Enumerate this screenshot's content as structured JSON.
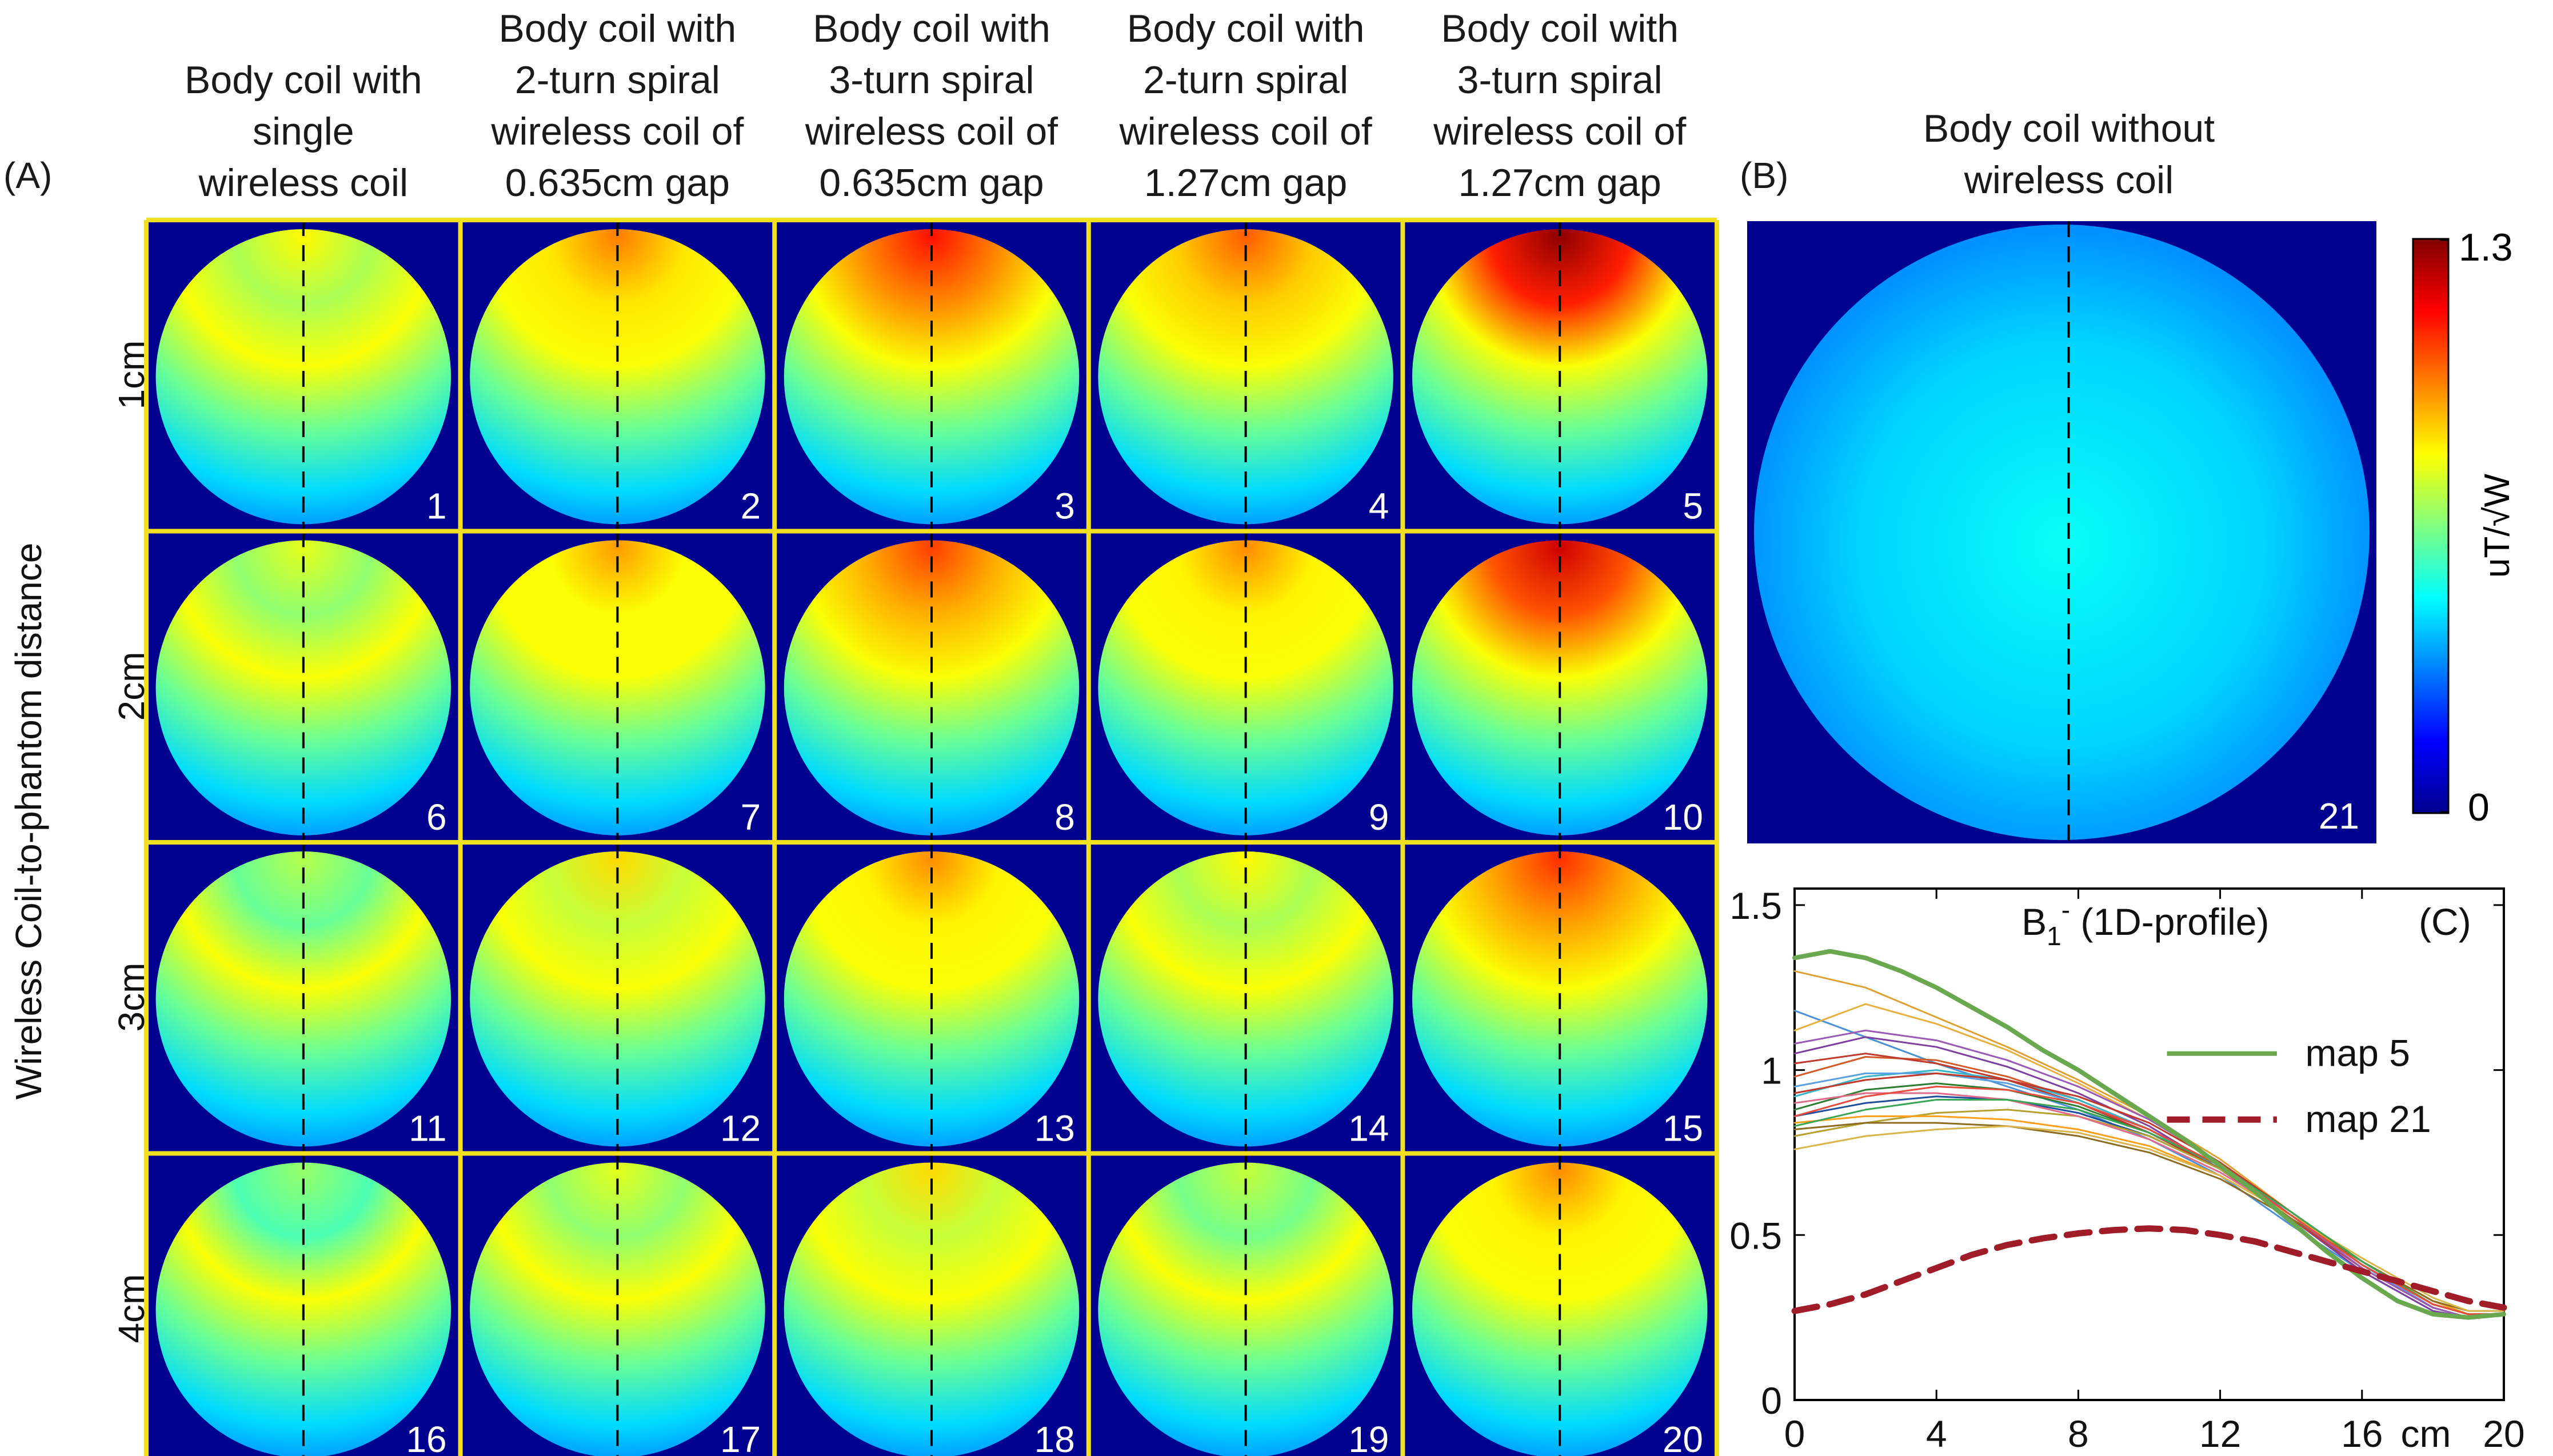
{
  "panel_labels": {
    "a": "(A)",
    "b": "(B)",
    "c": "(C)"
  },
  "panel_a": {
    "column_headers": [
      [
        "Body coil with",
        "single",
        "wireless coil"
      ],
      [
        "Body coil with",
        "2-turn spiral",
        "wireless coil of",
        "0.635cm gap"
      ],
      [
        "Body coil with",
        "3-turn spiral",
        "wireless coil of",
        "0.635cm gap"
      ],
      [
        "Body coil with",
        "2-turn spiral",
        "wireless coil of",
        "1.27cm gap"
      ],
      [
        "Body coil with",
        "3-turn spiral",
        "wireless coil of",
        "1.27cm gap"
      ]
    ],
    "row_labels": [
      "1cm",
      "2cm",
      "3cm",
      "4cm"
    ],
    "y_axis_label": "Wireless Coil-to-phantom distance",
    "map_numbers": [
      "1",
      "2",
      "3",
      "4",
      "5",
      "6",
      "7",
      "8",
      "9",
      "10",
      "11",
      "12",
      "13",
      "14",
      "15",
      "16",
      "17",
      "18",
      "19",
      "20"
    ],
    "peak_intensity": [
      [
        0.82,
        0.98,
        1.12,
        1.02,
        1.28
      ],
      [
        0.78,
        0.94,
        1.06,
        0.96,
        1.2
      ],
      [
        0.72,
        0.86,
        0.96,
        0.82,
        1.08
      ],
      [
        0.68,
        0.78,
        0.86,
        0.74,
        0.96
      ]
    ]
  },
  "panel_b": {
    "title": [
      "Body coil without",
      "wireless coil"
    ],
    "map_number": "21",
    "intensity": 0.42
  },
  "colorbar": {
    "max_label": "1.3",
    "min_label": "0",
    "unit_label": "uT/√W",
    "range": [
      0,
      1.3
    ]
  },
  "colors": {
    "grid_border": "#f0e020",
    "background": "#00008f",
    "dashed_line": "#000000"
  },
  "chart_data": {
    "type": "line",
    "title": "B1- (1D-profile)",
    "title_main": "B",
    "title_sub": "1",
    "title_sup": "-",
    "title_rest": " (1D-profile)",
    "panel_label": "(C)",
    "x_unit": "cm",
    "xlim": [
      0,
      20
    ],
    "ylim": [
      0,
      1.55
    ],
    "x_ticks": [
      0,
      4,
      8,
      12,
      16,
      20
    ],
    "x_tick_labels": [
      "0",
      "4",
      "8",
      "12",
      "16",
      "20"
    ],
    "y_ticks": [
      0,
      0.5,
      1,
      1.5
    ],
    "y_tick_labels": [
      "0",
      "0.5",
      "1",
      "1.5"
    ],
    "legend_position": "top-right",
    "series": [
      {
        "name": "map 5",
        "color": "#6aa84f",
        "width": 8,
        "dash": "",
        "x": [
          0,
          1,
          2,
          3,
          4,
          5,
          6,
          7,
          8,
          9,
          10,
          11,
          12,
          13,
          14,
          15,
          16,
          17,
          18,
          19,
          20
        ],
        "y": [
          1.34,
          1.36,
          1.34,
          1.3,
          1.25,
          1.19,
          1.13,
          1.06,
          1.0,
          0.93,
          0.86,
          0.79,
          0.71,
          0.63,
          0.54,
          0.45,
          0.37,
          0.3,
          0.26,
          0.25,
          0.26
        ]
      },
      {
        "name": "map 21",
        "color": "#a01c28",
        "width": 11,
        "dash": "40 22",
        "x": [
          0,
          1,
          2,
          3,
          4,
          5,
          6,
          7,
          8,
          9,
          10,
          11,
          12,
          13,
          14,
          15,
          16,
          17,
          18,
          19,
          20
        ],
        "y": [
          0.27,
          0.29,
          0.32,
          0.36,
          0.4,
          0.44,
          0.47,
          0.49,
          0.505,
          0.515,
          0.52,
          0.515,
          0.5,
          0.48,
          0.45,
          0.42,
          0.39,
          0.36,
          0.33,
          0.3,
          0.28
        ]
      },
      {
        "color": "#4a90d9",
        "width": 3,
        "x": [
          0,
          2,
          4,
          6,
          8,
          10,
          12,
          14,
          16,
          18,
          19,
          20
        ],
        "y": [
          1.18,
          1.1,
          1.02,
          0.95,
          0.88,
          0.79,
          0.68,
          0.53,
          0.39,
          0.27,
          0.25,
          0.26
        ]
      },
      {
        "color": "#e0a030",
        "width": 3,
        "x": [
          0,
          2,
          4,
          6,
          8,
          10,
          12,
          14,
          16,
          18,
          19,
          20
        ],
        "y": [
          1.3,
          1.25,
          1.16,
          1.07,
          0.97,
          0.86,
          0.73,
          0.57,
          0.41,
          0.28,
          0.25,
          0.26
        ]
      },
      {
        "color": "#e8b040",
        "width": 3,
        "x": [
          0,
          2,
          4,
          6,
          8,
          10,
          12,
          14,
          16,
          18,
          19,
          20
        ],
        "y": [
          1.12,
          1.2,
          1.14,
          1.06,
          0.96,
          0.85,
          0.72,
          0.56,
          0.4,
          0.28,
          0.25,
          0.26
        ]
      },
      {
        "color": "#7e3fa0",
        "width": 3,
        "x": [
          0,
          2,
          4,
          6,
          8,
          10,
          12,
          14,
          16,
          18,
          19,
          20
        ],
        "y": [
          1.05,
          1.1,
          1.07,
          1.01,
          0.93,
          0.83,
          0.7,
          0.55,
          0.39,
          0.27,
          0.25,
          0.26
        ]
      },
      {
        "color": "#d45a2a",
        "width": 3,
        "x": [
          0,
          2,
          4,
          6,
          8,
          10,
          12,
          14,
          16,
          18,
          19,
          20
        ],
        "y": [
          0.98,
          1.04,
          1.03,
          0.98,
          0.91,
          0.82,
          0.7,
          0.55,
          0.4,
          0.28,
          0.25,
          0.26
        ]
      },
      {
        "color": "#38b6c8",
        "width": 3,
        "x": [
          0,
          2,
          4,
          6,
          8,
          10,
          12,
          14,
          16,
          18,
          19,
          20
        ],
        "y": [
          0.92,
          0.98,
          1.0,
          0.97,
          0.91,
          0.82,
          0.7,
          0.55,
          0.4,
          0.28,
          0.25,
          0.26
        ]
      },
      {
        "color": "#2e7d32",
        "width": 3,
        "x": [
          0,
          2,
          4,
          6,
          8,
          10,
          12,
          14,
          16,
          18,
          19,
          20
        ],
        "y": [
          0.88,
          0.94,
          0.96,
          0.94,
          0.89,
          0.81,
          0.7,
          0.56,
          0.41,
          0.28,
          0.25,
          0.26
        ]
      },
      {
        "color": "#c0392b",
        "width": 3,
        "x": [
          0,
          2,
          4,
          6,
          8,
          10,
          12,
          14,
          16,
          18,
          19,
          20
        ],
        "y": [
          1.02,
          1.05,
          1.02,
          0.97,
          0.9,
          0.81,
          0.7,
          0.55,
          0.4,
          0.28,
          0.25,
          0.26
        ]
      },
      {
        "color": "#1f4e9c",
        "width": 3,
        "x": [
          0,
          2,
          4,
          6,
          8,
          10,
          12,
          14,
          16,
          18,
          19,
          20
        ],
        "y": [
          0.86,
          0.9,
          0.92,
          0.91,
          0.87,
          0.8,
          0.7,
          0.56,
          0.41,
          0.29,
          0.26,
          0.26
        ]
      },
      {
        "color": "#b5a030",
        "width": 3,
        "x": [
          0,
          2,
          4,
          6,
          8,
          10,
          12,
          14,
          16,
          18,
          19,
          20
        ],
        "y": [
          0.8,
          0.84,
          0.87,
          0.88,
          0.86,
          0.8,
          0.7,
          0.56,
          0.42,
          0.29,
          0.26,
          0.26
        ]
      },
      {
        "color": "#e06a8a",
        "width": 3,
        "x": [
          0,
          2,
          4,
          6,
          8,
          10,
          12,
          14,
          16,
          18,
          19,
          20
        ],
        "y": [
          0.9,
          0.93,
          0.93,
          0.91,
          0.86,
          0.79,
          0.69,
          0.56,
          0.41,
          0.29,
          0.26,
          0.26
        ]
      },
      {
        "color": "#ff9f1a",
        "width": 3,
        "x": [
          0,
          2,
          4,
          6,
          8,
          10,
          12,
          14,
          16,
          18,
          19,
          20
        ],
        "y": [
          0.84,
          0.86,
          0.86,
          0.85,
          0.82,
          0.77,
          0.68,
          0.56,
          0.42,
          0.3,
          0.26,
          0.26
        ]
      },
      {
        "color": "#5aa0e0",
        "width": 3,
        "x": [
          0,
          2,
          4,
          6,
          8,
          10,
          12,
          14,
          16,
          18,
          19,
          20
        ],
        "y": [
          0.95,
          0.99,
          0.99,
          0.96,
          0.9,
          0.82,
          0.71,
          0.56,
          0.41,
          0.28,
          0.25,
          0.26
        ]
      },
      {
        "color": "#8c6d1f",
        "width": 3,
        "x": [
          0,
          2,
          4,
          6,
          8,
          10,
          12,
          14,
          16,
          18,
          19,
          20
        ],
        "y": [
          0.82,
          0.84,
          0.84,
          0.83,
          0.8,
          0.75,
          0.67,
          0.55,
          0.42,
          0.3,
          0.27,
          0.27
        ]
      },
      {
        "color": "#9b59b6",
        "width": 3,
        "x": [
          0,
          2,
          4,
          6,
          8,
          10,
          12,
          14,
          16,
          18,
          19,
          20
        ],
        "y": [
          1.08,
          1.12,
          1.09,
          1.03,
          0.95,
          0.85,
          0.72,
          0.56,
          0.4,
          0.28,
          0.25,
          0.26
        ]
      },
      {
        "color": "#d9b54a",
        "width": 3,
        "x": [
          0,
          2,
          4,
          6,
          8,
          10,
          12,
          14,
          16,
          18,
          19,
          20
        ],
        "y": [
          0.76,
          0.8,
          0.82,
          0.83,
          0.81,
          0.76,
          0.68,
          0.56,
          0.43,
          0.31,
          0.27,
          0.27
        ]
      },
      {
        "color": "#c0392b",
        "width": 3,
        "x": [
          0,
          2,
          4,
          6,
          8,
          10,
          12,
          14,
          16,
          18,
          19,
          20
        ],
        "y": [
          0.93,
          0.97,
          0.99,
          0.97,
          0.92,
          0.84,
          0.72,
          0.57,
          0.42,
          0.29,
          0.26,
          0.26
        ]
      },
      {
        "color": "#3aa655",
        "width": 3,
        "x": [
          0,
          2,
          4,
          6,
          8,
          10,
          12,
          14,
          16,
          18,
          19,
          20
        ],
        "y": [
          0.83,
          0.88,
          0.91,
          0.91,
          0.88,
          0.81,
          0.71,
          0.57,
          0.42,
          0.29,
          0.26,
          0.26
        ]
      },
      {
        "color": "#e74c3c",
        "width": 3,
        "x": [
          0,
          2,
          4,
          6,
          8,
          10,
          12,
          14,
          16,
          18,
          19,
          20
        ],
        "y": [
          0.86,
          0.92,
          0.95,
          0.94,
          0.9,
          0.82,
          0.71,
          0.56,
          0.41,
          0.29,
          0.26,
          0.26
        ]
      }
    ]
  }
}
